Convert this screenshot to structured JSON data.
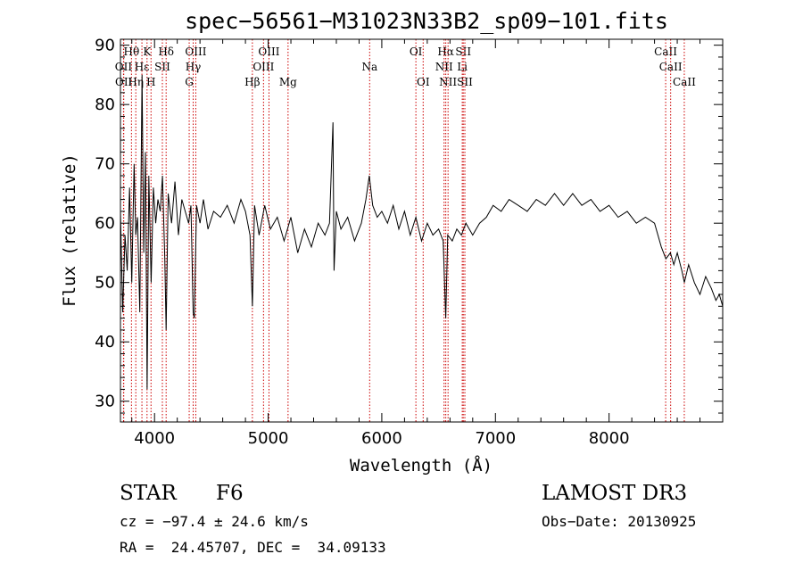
{
  "chart_data": {
    "type": "line",
    "title": "spec−56561−M31023N33B2_sp09−101.fits",
    "xlabel": "Wavelength (Å)",
    "ylabel": "Flux (relative)",
    "xlim": [
      3700,
      9000
    ],
    "ylim": [
      26.5,
      91
    ],
    "xticks": [
      4000,
      5000,
      6000,
      7000,
      8000
    ],
    "yticks": [
      30,
      40,
      50,
      60,
      70,
      80,
      90
    ],
    "series": [
      {
        "name": "flux",
        "x": [
          3700,
          3720,
          3740,
          3760,
          3780,
          3800,
          3820,
          3835,
          3850,
          3870,
          3890,
          3905,
          3920,
          3935,
          3950,
          3970,
          3990,
          4010,
          4030,
          4050,
          4070,
          4090,
          4102,
          4120,
          4150,
          4180,
          4210,
          4240,
          4270,
          4300,
          4320,
          4340,
          4350,
          4370,
          4400,
          4430,
          4470,
          4520,
          4580,
          4640,
          4700,
          4760,
          4800,
          4840,
          4861,
          4880,
          4920,
          4970,
          5020,
          5080,
          5140,
          5200,
          5260,
          5320,
          5380,
          5440,
          5500,
          5540,
          5570,
          5580,
          5600,
          5640,
          5700,
          5760,
          5820,
          5860,
          5890,
          5920,
          5960,
          6000,
          6050,
          6100,
          6150,
          6200,
          6250,
          6300,
          6350,
          6400,
          6450,
          6500,
          6540,
          6563,
          6580,
          6620,
          6660,
          6700,
          6740,
          6800,
          6860,
          6920,
          6980,
          7050,
          7120,
          7200,
          7280,
          7360,
          7440,
          7520,
          7600,
          7680,
          7760,
          7840,
          7920,
          8000,
          8080,
          8160,
          8240,
          8320,
          8400,
          8460,
          8500,
          8540,
          8570,
          8600,
          8640,
          8662,
          8700,
          8750,
          8800,
          8850,
          8900,
          8940,
          8970,
          9000
        ],
        "y": [
          62,
          45,
          58,
          52,
          66,
          50,
          70,
          58,
          61,
          45,
          85,
          55,
          72,
          32,
          68,
          50,
          66,
          60,
          64,
          62,
          68,
          54,
          42,
          65,
          60,
          67,
          58,
          64,
          62,
          60,
          63,
          45,
          44,
          63,
          60,
          64,
          59,
          62,
          61,
          63,
          60,
          64,
          62,
          58,
          46,
          63,
          58,
          63,
          59,
          61,
          57,
          61,
          55,
          59,
          56,
          60,
          58,
          60,
          77,
          52,
          62,
          59,
          61,
          57,
          60,
          64,
          68,
          63,
          61,
          62,
          60,
          63,
          59,
          62,
          58,
          61,
          57,
          60,
          58,
          59,
          57,
          44,
          58,
          57,
          59,
          58,
          60,
          58,
          60,
          61,
          63,
          62,
          64,
          63,
          62,
          64,
          63,
          65,
          63,
          65,
          63,
          64,
          62,
          63,
          61,
          62,
          60,
          61,
          60,
          56,
          54,
          55,
          53,
          55,
          52,
          50,
          53,
          50,
          48,
          51,
          49,
          47,
          48,
          46
        ]
      }
    ],
    "lines": [
      {
        "label": "Hθ",
        "x": 3797,
        "row": 0
      },
      {
        "label": "OII",
        "x": 3727,
        "row": 1
      },
      {
        "label": "OII",
        "x": 3729,
        "row": 2
      },
      {
        "label": "Hη",
        "x": 3835,
        "row": 2
      },
      {
        "label": "Hε",
        "x": 3889,
        "row": 1
      },
      {
        "label": "K",
        "x": 3934,
        "row": 0
      },
      {
        "label": "SII",
        "x": 4069,
        "row": 1
      },
      {
        "label": "H",
        "x": 3969,
        "row": 2
      },
      {
        "label": "Hδ",
        "x": 4102,
        "row": 0
      },
      {
        "label": "OIII",
        "x": 4363,
        "row": 0
      },
      {
        "label": "Hγ",
        "x": 4340,
        "row": 1
      },
      {
        "label": "G",
        "x": 4305,
        "row": 2
      },
      {
        "label": "Hβ",
        "x": 4861,
        "row": 2
      },
      {
        "label": "OIII",
        "x": 5007,
        "row": 0
      },
      {
        "label": "OIII",
        "x": 4959,
        "row": 1
      },
      {
        "label": "Mg",
        "x": 5175,
        "row": 2
      },
      {
        "label": "Na",
        "x": 5893,
        "row": 1
      },
      {
        "label": "OI",
        "x": 6300,
        "row": 0
      },
      {
        "label": "OI",
        "x": 6364,
        "row": 2
      },
      {
        "label": "Hα",
        "x": 6563,
        "row": 0
      },
      {
        "label": "NII",
        "x": 6548,
        "row": 1
      },
      {
        "label": "NII",
        "x": 6583,
        "row": 2
      },
      {
        "label": "SII",
        "x": 6717,
        "row": 0
      },
      {
        "label": "Li",
        "x": 6708,
        "row": 1
      },
      {
        "label": "SII",
        "x": 6731,
        "row": 2
      },
      {
        "label": "CaII",
        "x": 8498,
        "row": 0
      },
      {
        "label": "CaII",
        "x": 8542,
        "row": 1
      },
      {
        "label": "CaII",
        "x": 8662,
        "row": 2
      }
    ]
  },
  "info": {
    "class": "STAR",
    "subclass": "F6",
    "survey": "LAMOST DR3",
    "redshift": "cz = −97.4 ± 24.6 km/s",
    "obs_date": "Obs−Date: 20130925",
    "coords": "RA =  24.45707, DEC =  34.09133"
  },
  "colors": {
    "spectrum": "#000000",
    "line_markers": "#cc0000"
  }
}
